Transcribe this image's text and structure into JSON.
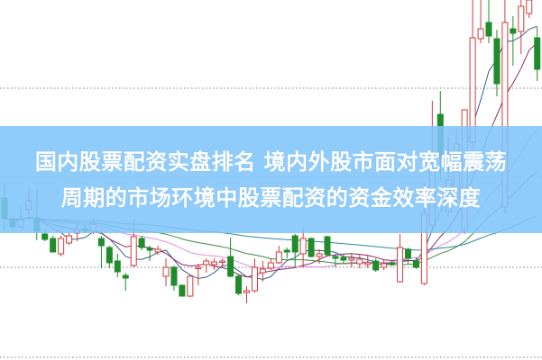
{
  "banner": {
    "line1": "国内股票配资实盘排名 境内外股市面对宽幅震荡",
    "line2": "周期的市场环境中股票配资的资金效率深度"
  },
  "chart_data": {
    "type": "candlestick",
    "title": "",
    "xlabel": "",
    "ylabel": "",
    "ylim": [
      0,
      40
    ],
    "grid": {
      "horizontal_dotted": true,
      "levels": [
        0.3,
        10.3,
        20.3,
        30.2
      ]
    },
    "colors": {
      "up": "#d03a3a",
      "down": "#1e8c2a",
      "ma": [
        "#3a5f8f",
        "#8b2a5f",
        "#e08ee0",
        "#3a8a3a",
        "#2a8a9a"
      ]
    },
    "moving_averages": [
      5,
      10,
      20,
      30,
      60
    ],
    "ohlc": [
      [
        18.0,
        15.7,
        19.5,
        14.5
      ],
      [
        15.5,
        14.8,
        16.0,
        14.5
      ],
      [
        14.8,
        15.6,
        17.0,
        14.7
      ],
      [
        16.7,
        17.7,
        19.0,
        16.0
      ],
      [
        15.8,
        14.3,
        19.0,
        13.3
      ],
      [
        14.0,
        13.4,
        14.5,
        13.2
      ],
      [
        13.5,
        12.0,
        13.8,
        12.0
      ],
      [
        11.8,
        13.5,
        13.8,
        11.5
      ],
      [
        13.0,
        13.8,
        14.2,
        12.8
      ],
      [
        14.1,
        14.5,
        15.2,
        13.2
      ],
      [
        14.6,
        14.3,
        15.0,
        14.1
      ],
      [
        14.3,
        15.1,
        15.8,
        14.0
      ],
      [
        13.5,
        12.7,
        13.8,
        10.2
      ],
      [
        12.5,
        10.8,
        12.7,
        10.2
      ],
      [
        11.0,
        9.8,
        11.8,
        9.2
      ],
      [
        9.4,
        9.1,
        9.7,
        7.7
      ],
      [
        10.5,
        13.7,
        15.7,
        10.3
      ],
      [
        13.5,
        12.5,
        13.8,
        12.2
      ],
      [
        12.4,
        12.2,
        12.7,
        11.0
      ],
      [
        12.0,
        12.3,
        12.7,
        11.7
      ],
      [
        9.3,
        10.3,
        11.3,
        8.2
      ],
      [
        10.3,
        8.3,
        10.5,
        7.7
      ],
      [
        8.3,
        7.1,
        8.4,
        7.1
      ],
      [
        7.1,
        9.3,
        9.4,
        7.0
      ],
      [
        10.2,
        10.3,
        10.7,
        8.3
      ],
      [
        10.6,
        11.0,
        11.3,
        9.7
      ],
      [
        10.6,
        10.9,
        11.3,
        10.0
      ],
      [
        10.9,
        11.0,
        11.3,
        10.3
      ],
      [
        11.5,
        9.3,
        13.6,
        9.2
      ],
      [
        9.3,
        7.4,
        9.5,
        7.2
      ],
      [
        7.5,
        7.7,
        8.2,
        6.3
      ],
      [
        7.7,
        10.3,
        11.3,
        7.5
      ],
      [
        9.7,
        10.1,
        11.0,
        8.7
      ],
      [
        10.2,
        10.8,
        11.3,
        10.0
      ],
      [
        10.8,
        12.0,
        12.7,
        10.7
      ],
      [
        12.2,
        12.0,
        12.5,
        11.3
      ],
      [
        13.8,
        12.0,
        14.0,
        10.3
      ],
      [
        11.8,
        13.5,
        14.7,
        10.3
      ],
      [
        13.5,
        11.5,
        13.6,
        11.4
      ],
      [
        11.5,
        11.8,
        12.3,
        10.7
      ],
      [
        13.7,
        11.7,
        13.8,
        11.6
      ],
      [
        11.5,
        11.3,
        11.8,
        10.3
      ],
      [
        11.4,
        11.1,
        11.7,
        10.7
      ],
      [
        11.1,
        11.3,
        11.8,
        10.3
      ],
      [
        10.7,
        11.2,
        11.7,
        10.2
      ],
      [
        10.6,
        10.8,
        11.7,
        10.2
      ],
      [
        11.0,
        10.0,
        11.3,
        9.8
      ],
      [
        10.3,
        10.7,
        11.2,
        10.0
      ],
      [
        10.8,
        10.6,
        11.0,
        10.4
      ],
      [
        8.7,
        12.5,
        14.0,
        8.6
      ],
      [
        12.3,
        11.3,
        12.5,
        10.7
      ],
      [
        11.0,
        10.3,
        11.4,
        10.1
      ],
      [
        8.5,
        16.3,
        19.7,
        8.3
      ],
      [
        15.0,
        22.0,
        28.8,
        14.2
      ],
      [
        27.3,
        22.5,
        29.9,
        20.0
      ],
      [
        16.5,
        20.0,
        24.8,
        16.0
      ],
      [
        18.0,
        24.0,
        25.7,
        17.5
      ],
      [
        14.5,
        27.8,
        27.8,
        14.0
      ],
      [
        24.2,
        35.8,
        40.0,
        21.0
      ],
      [
        35.7,
        36.8,
        40.0,
        35.2
      ],
      [
        37.5,
        36.0,
        40.0,
        35.2
      ],
      [
        35.7,
        30.7,
        36.7,
        29.3
      ],
      [
        17.0,
        37.5,
        40.0,
        16.3
      ],
      [
        36.8,
        36.3,
        38.2,
        32.7
      ],
      [
        36.5,
        39.3,
        40.0,
        34.0
      ],
      [
        38.5,
        40.0,
        40.0,
        38.0
      ],
      [
        35.8,
        32.3,
        37.0,
        31.0
      ]
    ]
  }
}
